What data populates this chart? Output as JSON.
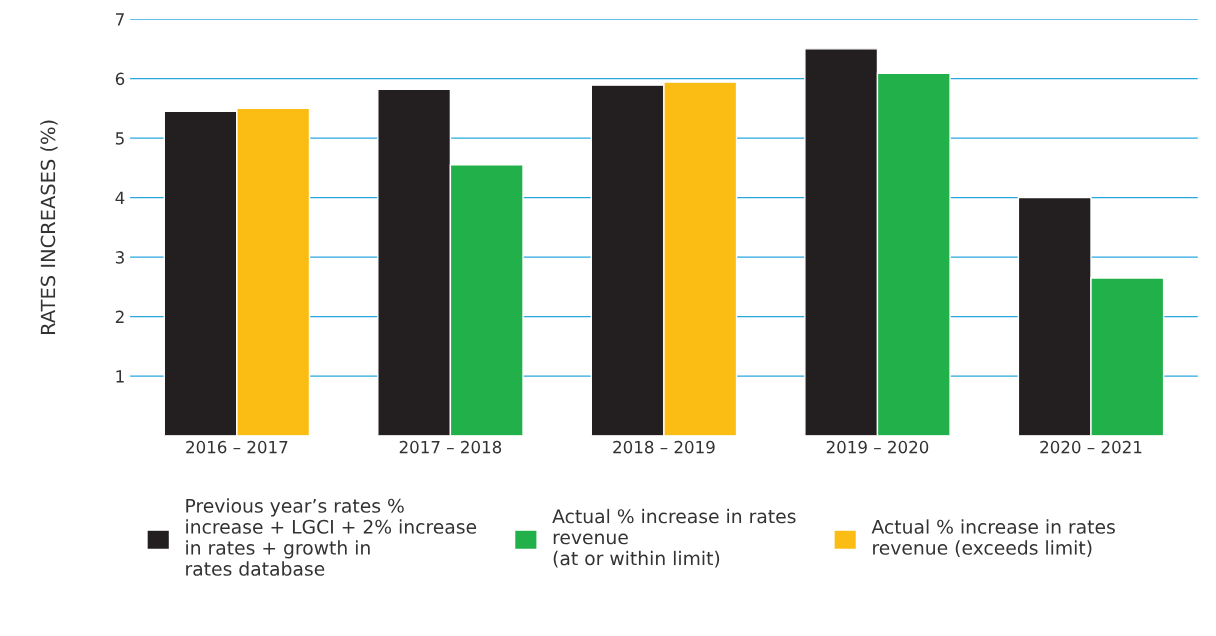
{
  "chart_data": {
    "type": "bar",
    "ylabel": "RATES INCREASES (%)",
    "categories": [
      "2016 – 2017",
      "2017 – 2018",
      "2018 – 2019",
      "2019 – 2020",
      "2020 – 2021"
    ],
    "series": [
      {
        "name": "Previous year’s rates %\nincrease + LGCI + 2% increase\nin rates + growth in\nrates database",
        "color": "#231f20",
        "values": [
          5.45,
          5.82,
          5.89,
          6.5,
          4.0
        ]
      },
      {
        "name": "Actual % increase in rates\nrevenue\n(at or within limit)",
        "color": "#22b04b",
        "values": [
          null,
          4.55,
          null,
          6.09,
          2.65
        ]
      },
      {
        "name": "Actual % increase in rates\nrevenue (exceeds limit)",
        "color": "#fbbd13",
        "values": [
          5.5,
          null,
          5.94,
          null,
          null
        ]
      }
    ],
    "ylim": [
      0,
      7
    ],
    "yticks": [
      1,
      2,
      3,
      4,
      5,
      6,
      7
    ],
    "grid": "y",
    "legend": "bottom"
  }
}
